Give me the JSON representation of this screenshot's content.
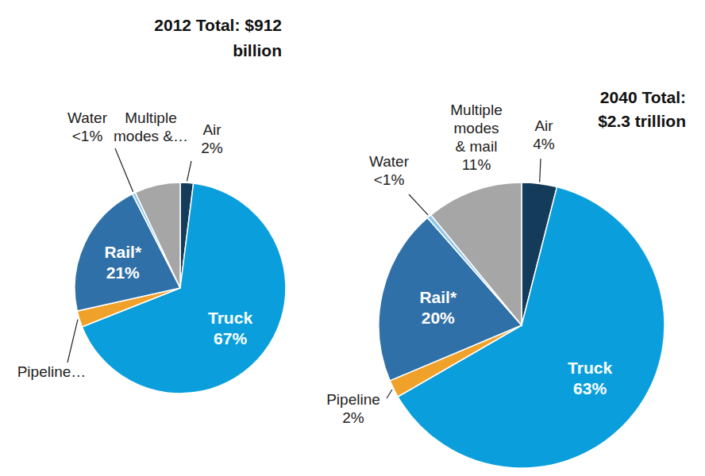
{
  "chart_data": [
    {
      "type": "pie",
      "title": "2012 Total: $912 billion",
      "categories": [
        "Air",
        "Truck",
        "Pipeline…",
        "Rail*",
        "Water",
        "Multiple modes &…"
      ],
      "values": [
        2,
        67,
        2.5,
        21,
        0.5,
        7
      ],
      "value_labels": [
        "2%",
        "67%",
        null,
        "21%",
        "<1%",
        null
      ],
      "colors": [
        "#143c5a",
        "#0a9fdc",
        "#efa12a",
        "#3070a8",
        "#8fc8e8",
        "#a6a6a6"
      ],
      "data_labels": true
    },
    {
      "type": "pie",
      "title": "2040 Total: $2.3 trillion",
      "categories": [
        "Air",
        "Truck",
        "Pipeline",
        "Rail*",
        "Water",
        "Multiple modes & mail"
      ],
      "values": [
        4,
        63,
        2,
        20,
        0.5,
        11
      ],
      "value_labels": [
        "4%",
        "63%",
        "2%",
        "20%",
        "<1%",
        "11%"
      ],
      "colors": [
        "#143c5a",
        "#0a9fdc",
        "#efa12a",
        "#3070a8",
        "#8fc8e8",
        "#a6a6a6"
      ],
      "data_labels": true
    }
  ]
}
